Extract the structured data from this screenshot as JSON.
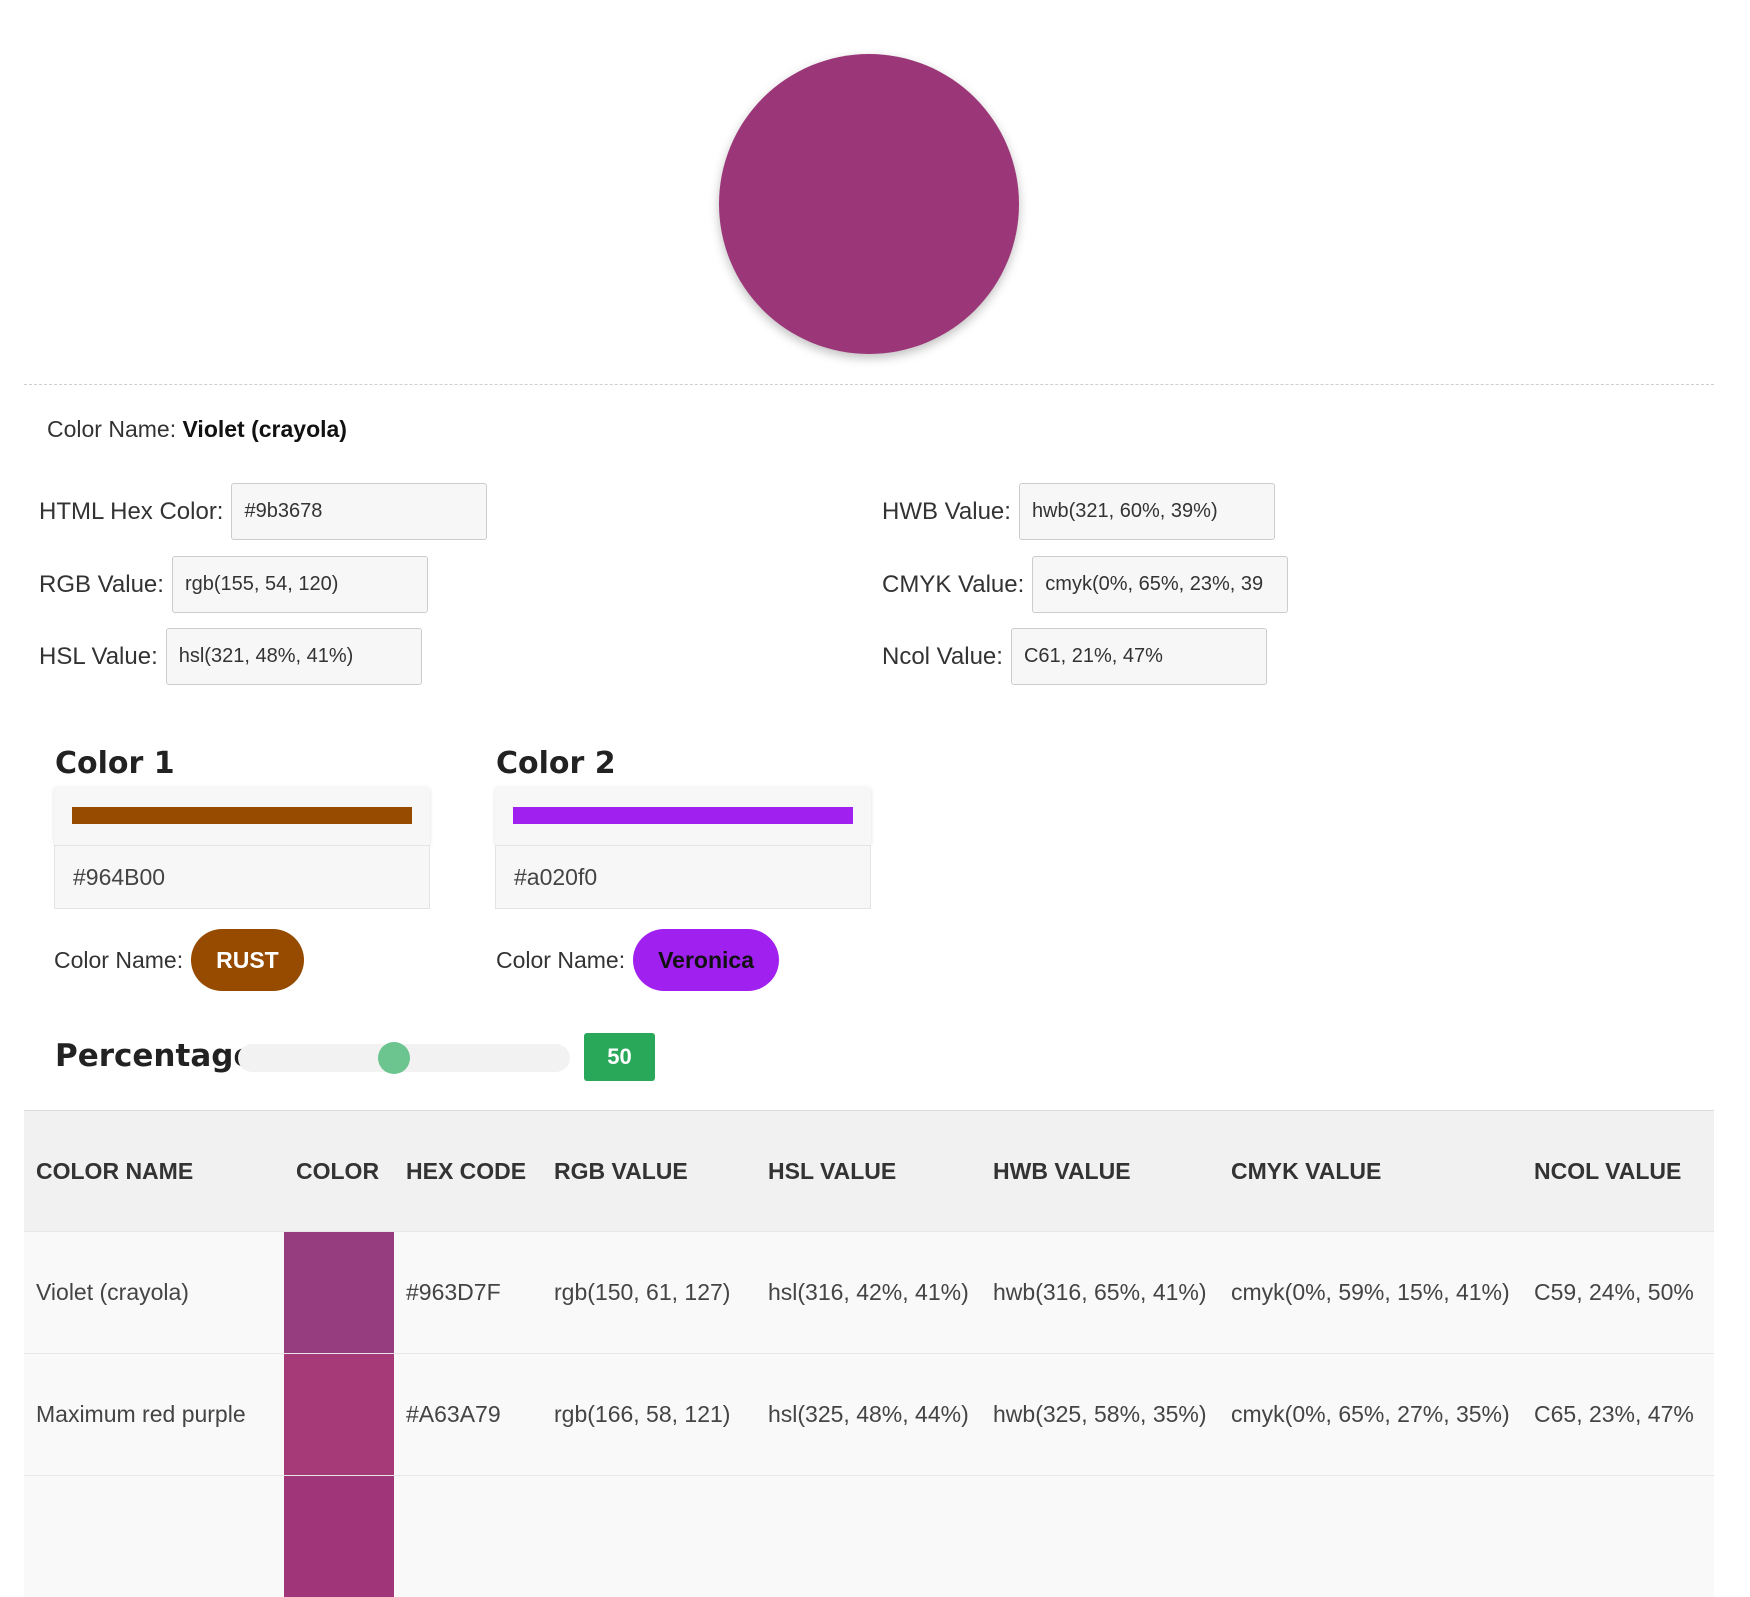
{
  "main_color": {
    "hex": "#9b3678"
  },
  "color_name": {
    "label": "Color Name:",
    "value": "Violet (crayola)"
  },
  "fields_left": [
    {
      "label": "HTML Hex Color:",
      "value": "#9b3678"
    },
    {
      "label": "RGB Value:",
      "value": "rgb(155, 54, 120)"
    },
    {
      "label": "HSL Value:",
      "value": "hsl(321, 48%, 41%)"
    }
  ],
  "fields_right": [
    {
      "label": "HWB Value:",
      "value": "hwb(321, 60%, 39%)"
    },
    {
      "label": "CMYK Value:",
      "value": "cmyk(0%, 65%, 23%, 39"
    },
    {
      "label": "Ncol Value:",
      "value": "C61, 21%, 47%"
    }
  ],
  "mix": {
    "color1": {
      "title": "Color 1",
      "hex": "#964B00",
      "name_label": "Color Name:",
      "name": "RUST",
      "bar_color": "#964B00",
      "text_color": "#ffffff"
    },
    "color2": {
      "title": "Color 2",
      "hex": "#a020f0",
      "name_label": "Color Name:",
      "name": "Veronica",
      "bar_color": "#a020f0",
      "text_color": "#111111"
    }
  },
  "percentage": {
    "title": "Percentage",
    "value": "50",
    "fraction": 0.5
  },
  "table": {
    "headers": [
      "COLOR NAME",
      "COLOR",
      "HEX CODE",
      "RGB VALUE",
      "HSL VALUE",
      "HWB VALUE",
      "CMYK VALUE",
      "NCOL VALUE"
    ],
    "rows": [
      {
        "name": "Violet (crayola)",
        "swatch": "#963D7F",
        "hex": "#963D7F",
        "rgb": "rgb(150, 61, 127)",
        "hsl": "hsl(316, 42%, 41%)",
        "hwb": "hwb(316, 65%, 41%)",
        "cmyk": "cmyk(0%, 59%, 15%, 41%)",
        "ncol": "C59, 24%, 50%"
      },
      {
        "name": "Maximum red purple",
        "swatch": "#A63A79",
        "hex": "#A63A79",
        "rgb": "rgb(166, 58, 121)",
        "hsl": "hsl(325, 48%, 44%)",
        "hwb": "hwb(325, 58%, 35%)",
        "cmyk": "cmyk(0%, 65%, 27%, 35%)",
        "ncol": "C65, 23%, 47%"
      },
      {
        "name": "",
        "swatch": "#A0357A",
        "hex": "",
        "rgb": "",
        "hsl": "",
        "hwb": "",
        "cmyk": "",
        "ncol": ""
      }
    ]
  }
}
